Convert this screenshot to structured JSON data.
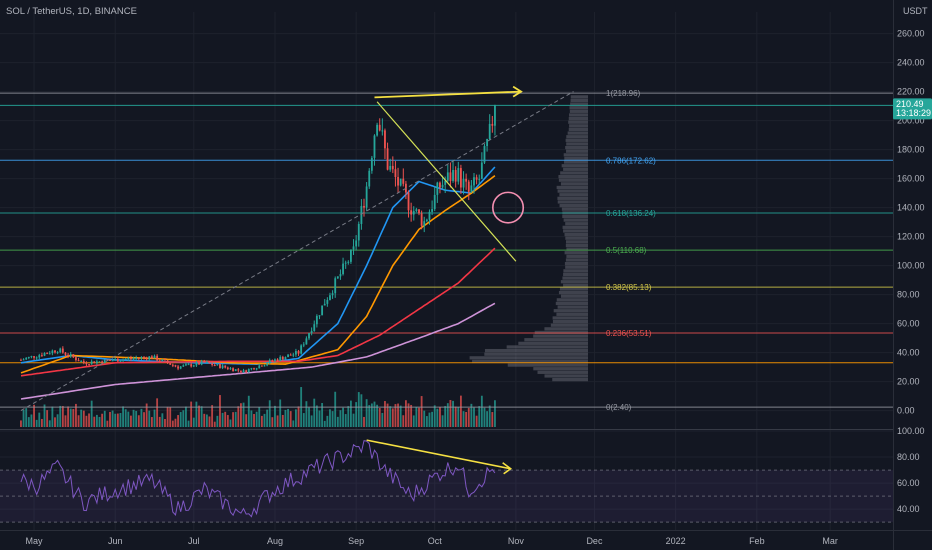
{
  "title": "SOL / TetherUS, 1D, BINANCE",
  "currency_label": "USDT",
  "price_badge": {
    "price": "210.49",
    "countdown": "13:18:29",
    "color": "#26a69a"
  },
  "chart_data": {
    "type": "candlestick",
    "main_panel": {
      "y_ticks": [
        0,
        20,
        40,
        60,
        80,
        100,
        120,
        140,
        160,
        180,
        200,
        220,
        240,
        260
      ],
      "y_tick_labels": [
        "0.00",
        "20.00",
        "40.00",
        "60.00",
        "80.00",
        "100.00",
        "120.00",
        "140.00",
        "160.00",
        "180.00",
        "200.00",
        "220.00",
        "240.00",
        "260.00"
      ],
      "ylim": [
        -12,
        268
      ],
      "last_price": 210.49,
      "price_anchors": [
        [
          "2021-04-26",
          35
        ],
        [
          "2021-05-10",
          42
        ],
        [
          "2021-05-20",
          33
        ],
        [
          "2021-06-01",
          35
        ],
        [
          "2021-06-15",
          37
        ],
        [
          "2021-06-25",
          30
        ],
        [
          "2021-07-05",
          33
        ],
        [
          "2021-07-20",
          27
        ],
        [
          "2021-08-01",
          35
        ],
        [
          "2021-08-10",
          40
        ],
        [
          "2021-08-20",
          75
        ],
        [
          "2021-08-31",
          110
        ],
        [
          "2021-09-05",
          155
        ],
        [
          "2021-09-09",
          205
        ],
        [
          "2021-09-13",
          170
        ],
        [
          "2021-09-22",
          140
        ],
        [
          "2021-09-27",
          130
        ],
        [
          "2021-10-03",
          155
        ],
        [
          "2021-10-09",
          165
        ],
        [
          "2021-10-14",
          150
        ],
        [
          "2021-10-18",
          160
        ],
        [
          "2021-10-22",
          190
        ],
        [
          "2021-10-24",
          210.49
        ]
      ],
      "fib_levels": [
        {
          "ratio": "1",
          "price": 218.96,
          "label": "1(218.96)",
          "color": "#9598a1"
        },
        {
          "ratio": "0.786",
          "price": 172.62,
          "label": "0.786(172.62)",
          "color": "#42a5f5"
        },
        {
          "ratio": "0.618",
          "price": 136.24,
          "label": "0.618(136.24)",
          "color": "#26a69a"
        },
        {
          "ratio": "0.5",
          "price": 110.68,
          "label": "0.5(110.68)",
          "color": "#4caf50"
        },
        {
          "ratio": "0.382",
          "price": 85.13,
          "label": "0.382(85.13)",
          "color": "#d4c84a"
        },
        {
          "ratio": "0.236",
          "price": 53.51,
          "label": "0.236(53.51)",
          "color": "#ef5350"
        },
        {
          "ratio": "0",
          "price": 2.4,
          "label": "0(2.40)",
          "color": "#9598a1"
        }
      ],
      "extra_lines": [
        {
          "price": 210.49,
          "color": "#26a69a"
        },
        {
          "price": 33,
          "color": "#ff9800"
        }
      ],
      "moving_averages": [
        {
          "color": "#2196f3",
          "anchors": [
            [
              "2021-04-26",
              33
            ],
            [
              "2021-05-15",
              38
            ],
            [
              "2021-06-01",
              35
            ],
            [
              "2021-07-01",
              33
            ],
            [
              "2021-07-25",
              32
            ],
            [
              "2021-08-10",
              36
            ],
            [
              "2021-08-25",
              60
            ],
            [
              "2021-09-05",
              100
            ],
            [
              "2021-09-15",
              140
            ],
            [
              "2021-09-25",
              158
            ],
            [
              "2021-10-05",
              152
            ],
            [
              "2021-10-15",
              150
            ],
            [
              "2021-10-24",
              168
            ]
          ]
        },
        {
          "color": "#ff9800",
          "anchors": [
            [
              "2021-04-26",
              26
            ],
            [
              "2021-05-15",
              38
            ],
            [
              "2021-06-15",
              36
            ],
            [
              "2021-07-15",
              33
            ],
            [
              "2021-08-05",
              32
            ],
            [
              "2021-08-25",
              42
            ],
            [
              "2021-09-05",
              65
            ],
            [
              "2021-09-15",
              100
            ],
            [
              "2021-09-25",
              125
            ],
            [
              "2021-10-05",
              138
            ],
            [
              "2021-10-15",
              150
            ],
            [
              "2021-10-24",
              162
            ]
          ]
        },
        {
          "color": "#f23645",
          "anchors": [
            [
              "2021-04-26",
              24
            ],
            [
              "2021-06-01",
              33
            ],
            [
              "2021-07-15",
              34
            ],
            [
              "2021-08-10",
              34
            ],
            [
              "2021-08-25",
              38
            ],
            [
              "2021-09-10",
              52
            ],
            [
              "2021-09-25",
              70
            ],
            [
              "2021-10-10",
              88
            ],
            [
              "2021-10-24",
              112
            ]
          ]
        },
        {
          "color": "#ce93d8",
          "anchors": [
            [
              "2021-04-26",
              8
            ],
            [
              "2021-06-01",
              18
            ],
            [
              "2021-07-15",
              25
            ],
            [
              "2021-08-15",
              30
            ],
            [
              "2021-09-05",
              37
            ],
            [
              "2021-09-25",
              50
            ],
            [
              "2021-10-10",
              60
            ],
            [
              "2021-10-24",
              74
            ]
          ]
        }
      ],
      "annotations": {
        "resistance_arrow": {
          "from": [
            "2021-09-08",
            216
          ],
          "to": [
            "2021-11-03",
            220
          ],
          "color": "#f5e042"
        },
        "falling_line": {
          "from": [
            "2021-09-09",
            213
          ],
          "to": [
            "2021-11-01",
            103
          ],
          "color": "#d4e157"
        },
        "dashed_trend": {
          "from": [
            "2021-04-26",
            0
          ],
          "to": [
            "2021-11-23",
            220
          ],
          "color": "#787b86"
        },
        "circle": {
          "center": [
            "2021-10-29",
            140
          ],
          "radius_price": 10,
          "color": "#f48fb1"
        }
      },
      "volume_profile": {
        "color": "#b2b5be"
      },
      "volume_bars": {
        "up_color": "#26a69a",
        "down_color": "#ef5350"
      }
    },
    "rsi_panel": {
      "y_ticks": [
        40,
        60,
        80,
        100
      ],
      "y_tick_labels": [
        "40.00",
        "60.00",
        "80.00",
        "100.00"
      ],
      "ylim": [
        24,
        100
      ],
      "upper_band": 70,
      "lower_band": 30,
      "mid_line": 50,
      "line_color": "#7e57c2",
      "anchors": [
        [
          "2021-04-26",
          62
        ],
        [
          "2021-05-02",
          58
        ],
        [
          "2021-05-10",
          72
        ],
        [
          "2021-05-20",
          45
        ],
        [
          "2021-06-01",
          55
        ],
        [
          "2021-06-15",
          62
        ],
        [
          "2021-06-25",
          40
        ],
        [
          "2021-07-05",
          55
        ],
        [
          "2021-07-20",
          35
        ],
        [
          "2021-08-01",
          55
        ],
        [
          "2021-08-10",
          65
        ],
        [
          "2021-08-20",
          75
        ],
        [
          "2021-09-01",
          85
        ],
        [
          "2021-09-05",
          90
        ],
        [
          "2021-09-12",
          70
        ],
        [
          "2021-09-22",
          50
        ],
        [
          "2021-10-03",
          68
        ],
        [
          "2021-10-10",
          75
        ],
        [
          "2021-10-14",
          55
        ],
        [
          "2021-10-20",
          65
        ],
        [
          "2021-10-24",
          72
        ]
      ],
      "divergence_arrow": {
        "from": [
          "2021-09-05",
          93
        ],
        "to": [
          "2021-10-30",
          71
        ],
        "color": "#f5e042"
      }
    },
    "x_ticks": [
      {
        "label": "May",
        "date": "2021-05-01"
      },
      {
        "label": "Jun",
        "date": "2021-06-01"
      },
      {
        "label": "Jul",
        "date": "2021-07-01"
      },
      {
        "label": "Aug",
        "date": "2021-08-01"
      },
      {
        "label": "Sep",
        "date": "2021-09-01"
      },
      {
        "label": "Oct",
        "date": "2021-10-01"
      },
      {
        "label": "Nov",
        "date": "2021-11-01"
      },
      {
        "label": "Dec",
        "date": "2021-12-01"
      },
      {
        "label": "2022",
        "date": "2022-01-01"
      },
      {
        "label": "Feb",
        "date": "2022-02-01"
      },
      {
        "label": "Mar",
        "date": "2022-03-01"
      }
    ],
    "xlim": [
      "2021-04-18",
      "2022-03-25"
    ]
  }
}
